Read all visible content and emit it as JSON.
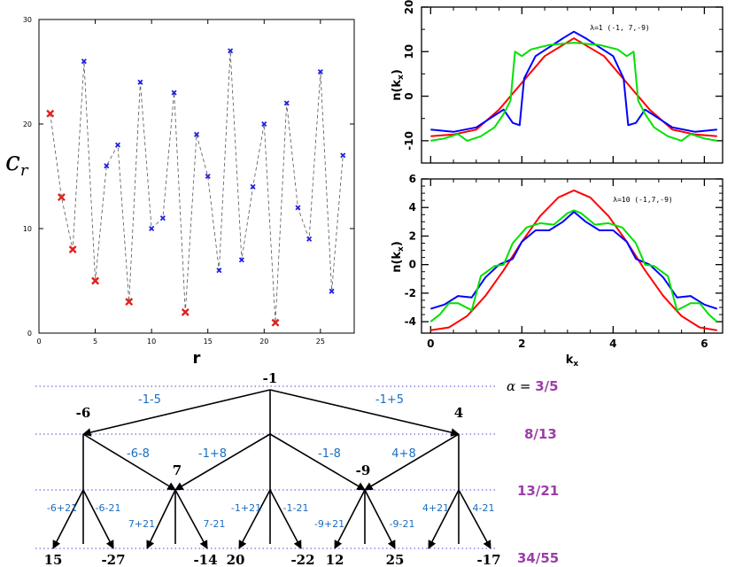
{
  "chart_data": [
    {
      "type": "scatter",
      "ylabel": "c",
      "ylabel_sub": "r",
      "xlabel": "r",
      "xlim": [
        0,
        28
      ],
      "ylim": [
        0,
        30
      ],
      "xticks": [
        0,
        5,
        10,
        15,
        20,
        25
      ],
      "yticks": [
        0,
        10,
        20,
        30
      ],
      "line_style": "dashed",
      "grid": false,
      "series": [
        {
          "color": "#2020e0",
          "points": [
            [
              4,
              26
            ],
            [
              6,
              16
            ],
            [
              7,
              18
            ],
            [
              9,
              24
            ],
            [
              10,
              10
            ],
            [
              11,
              11
            ],
            [
              12,
              23
            ],
            [
              14,
              19
            ],
            [
              15,
              15
            ],
            [
              16,
              6
            ],
            [
              17,
              27
            ],
            [
              18,
              7
            ],
            [
              19,
              14
            ],
            [
              20,
              20
            ],
            [
              22,
              22
            ],
            [
              23,
              12
            ],
            [
              24,
              9
            ],
            [
              25,
              25
            ],
            [
              26,
              4
            ],
            [
              27,
              17
            ]
          ]
        },
        {
          "color": "#e02020",
          "points": [
            [
              1,
              21
            ],
            [
              2,
              13
            ],
            [
              3,
              8
            ],
            [
              5,
              5
            ],
            [
              8,
              3
            ],
            [
              13,
              2
            ],
            [
              21,
              1
            ]
          ]
        }
      ]
    },
    {
      "type": "line",
      "ylabel": "n(k",
      "ylabel_sub": "x",
      "annotation": "λ=1 (-1, 7,-9)",
      "xlim": [
        -0.2,
        6.4
      ],
      "ylim": [
        -15,
        20
      ],
      "yticks": [
        -10,
        0,
        10,
        20
      ],
      "grid": false,
      "series": [
        {
          "color": "#ff0000",
          "points": [
            [
              0,
              -9
            ],
            [
              0.5,
              -8.6
            ],
            [
              1,
              -7.5
            ],
            [
              1.5,
              -3
            ],
            [
              2,
              3
            ],
            [
              2.5,
              9
            ],
            [
              3.14,
              13
            ],
            [
              3.8,
              9
            ],
            [
              4.3,
              3
            ],
            [
              4.8,
              -3
            ],
            [
              5.3,
              -7.5
            ],
            [
              5.8,
              -8.6
            ],
            [
              6.28,
              -9
            ]
          ]
        },
        {
          "color": "#0000ff",
          "points": [
            [
              0,
              -7.5
            ],
            [
              0.5,
              -8
            ],
            [
              1,
              -7
            ],
            [
              1.3,
              -5
            ],
            [
              1.6,
              -3
            ],
            [
              1.8,
              -6
            ],
            [
              1.95,
              -6.5
            ],
            [
              2.05,
              4
            ],
            [
              2.3,
              9
            ],
            [
              2.6,
              11
            ],
            [
              2.9,
              13
            ],
            [
              3.14,
              14.5
            ],
            [
              3.4,
              13
            ],
            [
              3.7,
              11
            ],
            [
              4,
              9
            ],
            [
              4.23,
              4
            ],
            [
              4.33,
              -6.5
            ],
            [
              4.5,
              -6
            ],
            [
              4.7,
              -3
            ],
            [
              5,
              -5
            ],
            [
              5.3,
              -7
            ],
            [
              5.8,
              -8
            ],
            [
              6.28,
              -7.5
            ]
          ]
        },
        {
          "color": "#00e000",
          "points": [
            [
              0,
              -10
            ],
            [
              0.3,
              -9.5
            ],
            [
              0.6,
              -8.5
            ],
            [
              0.8,
              -10
            ],
            [
              1.1,
              -9
            ],
            [
              1.4,
              -7
            ],
            [
              1.6,
              -4
            ],
            [
              1.75,
              -1
            ],
            [
              1.85,
              10
            ],
            [
              2,
              9
            ],
            [
              2.2,
              10.5
            ],
            [
              2.6,
              11.5
            ],
            [
              3.14,
              12
            ],
            [
              3.7,
              11.5
            ],
            [
              4.1,
              10.5
            ],
            [
              4.3,
              9
            ],
            [
              4.45,
              10
            ],
            [
              4.55,
              -1
            ],
            [
              4.7,
              -4
            ],
            [
              4.9,
              -7
            ],
            [
              5.2,
              -9
            ],
            [
              5.5,
              -10
            ],
            [
              5.7,
              -8.5
            ],
            [
              6,
              -9.5
            ],
            [
              6.28,
              -10
            ]
          ]
        }
      ]
    },
    {
      "type": "line",
      "xlabel": "k",
      "xlabel_sub": "x",
      "ylabel": "n(k",
      "ylabel_sub": "x",
      "annotation": "λ=10 (-1,7,-9)",
      "xlim": [
        -0.2,
        6.4
      ],
      "ylim": [
        -4.8,
        6
      ],
      "xticks": [
        0,
        2,
        4,
        6
      ],
      "yticks": [
        -4,
        -2,
        0,
        2,
        4,
        6
      ],
      "grid": false,
      "series": [
        {
          "color": "#ff0000",
          "points": [
            [
              0,
              -4.6
            ],
            [
              0.4,
              -4.4
            ],
            [
              0.8,
              -3.6
            ],
            [
              1.2,
              -2.2
            ],
            [
              1.6,
              -0.4
            ],
            [
              2,
              1.6
            ],
            [
              2.4,
              3.4
            ],
            [
              2.8,
              4.7
            ],
            [
              3.14,
              5.2
            ],
            [
              3.5,
              4.7
            ],
            [
              3.9,
              3.4
            ],
            [
              4.3,
              1.6
            ],
            [
              4.7,
              -0.4
            ],
            [
              5.1,
              -2.2
            ],
            [
              5.5,
              -3.6
            ],
            [
              5.9,
              -4.4
            ],
            [
              6.28,
              -4.6
            ]
          ]
        },
        {
          "color": "#0000ff",
          "points": [
            [
              0,
              -3.1
            ],
            [
              0.3,
              -2.8
            ],
            [
              0.6,
              -2.2
            ],
            [
              0.9,
              -2.3
            ],
            [
              1.2,
              -0.9
            ],
            [
              1.5,
              0
            ],
            [
              1.8,
              0.4
            ],
            [
              2,
              1.6
            ],
            [
              2.3,
              2.4
            ],
            [
              2.6,
              2.4
            ],
            [
              2.9,
              3
            ],
            [
              3.14,
              3.7
            ],
            [
              3.4,
              3
            ],
            [
              3.7,
              2.4
            ],
            [
              4,
              2.4
            ],
            [
              4.3,
              1.6
            ],
            [
              4.5,
              0.4
            ],
            [
              4.8,
              0
            ],
            [
              5.1,
              -0.9
            ],
            [
              5.4,
              -2.3
            ],
            [
              5.7,
              -2.2
            ],
            [
              6,
              -2.8
            ],
            [
              6.28,
              -3.1
            ]
          ]
        },
        {
          "color": "#00e000",
          "points": [
            [
              0,
              -4
            ],
            [
              0.2,
              -3.5
            ],
            [
              0.4,
              -2.7
            ],
            [
              0.6,
              -2.7
            ],
            [
              0.9,
              -3.2
            ],
            [
              1.1,
              -0.8
            ],
            [
              1.4,
              -0.1
            ],
            [
              1.6,
              0
            ],
            [
              1.8,
              1.5
            ],
            [
              2.1,
              2.6
            ],
            [
              2.4,
              2.9
            ],
            [
              2.7,
              2.8
            ],
            [
              3,
              3.6
            ],
            [
              3.14,
              3.8
            ],
            [
              3.3,
              3.6
            ],
            [
              3.6,
              2.8
            ],
            [
              3.9,
              2.9
            ],
            [
              4.2,
              2.6
            ],
            [
              4.5,
              1.5
            ],
            [
              4.7,
              0
            ],
            [
              4.9,
              -0.1
            ],
            [
              5.2,
              -0.8
            ],
            [
              5.4,
              -3.2
            ],
            [
              5.7,
              -2.7
            ],
            [
              5.9,
              -2.7
            ],
            [
              6.1,
              -3.5
            ],
            [
              6.28,
              -4
            ]
          ]
        }
      ]
    },
    {
      "type": "diagram",
      "title_symbol": "α",
      "title_eq": " = ",
      "title_value": "3/5",
      "levels": [
        "8/13",
        "13/21",
        "34/55"
      ],
      "nodes": [
        "-1",
        "-6",
        "4",
        "7",
        "-9",
        "15",
        "-27",
        "-14",
        "20",
        "-22",
        "12",
        "25",
        "-17"
      ],
      "edge_labels": [
        "-1-5",
        "-1+5",
        "-6-8",
        "-1+8",
        "-1-8",
        "4+8",
        "-6+21",
        "-6-21",
        "7+21",
        "7-21",
        "-1+21",
        "-1-21",
        "-9+21",
        "-9-21",
        "4+21",
        "4-21"
      ]
    }
  ]
}
